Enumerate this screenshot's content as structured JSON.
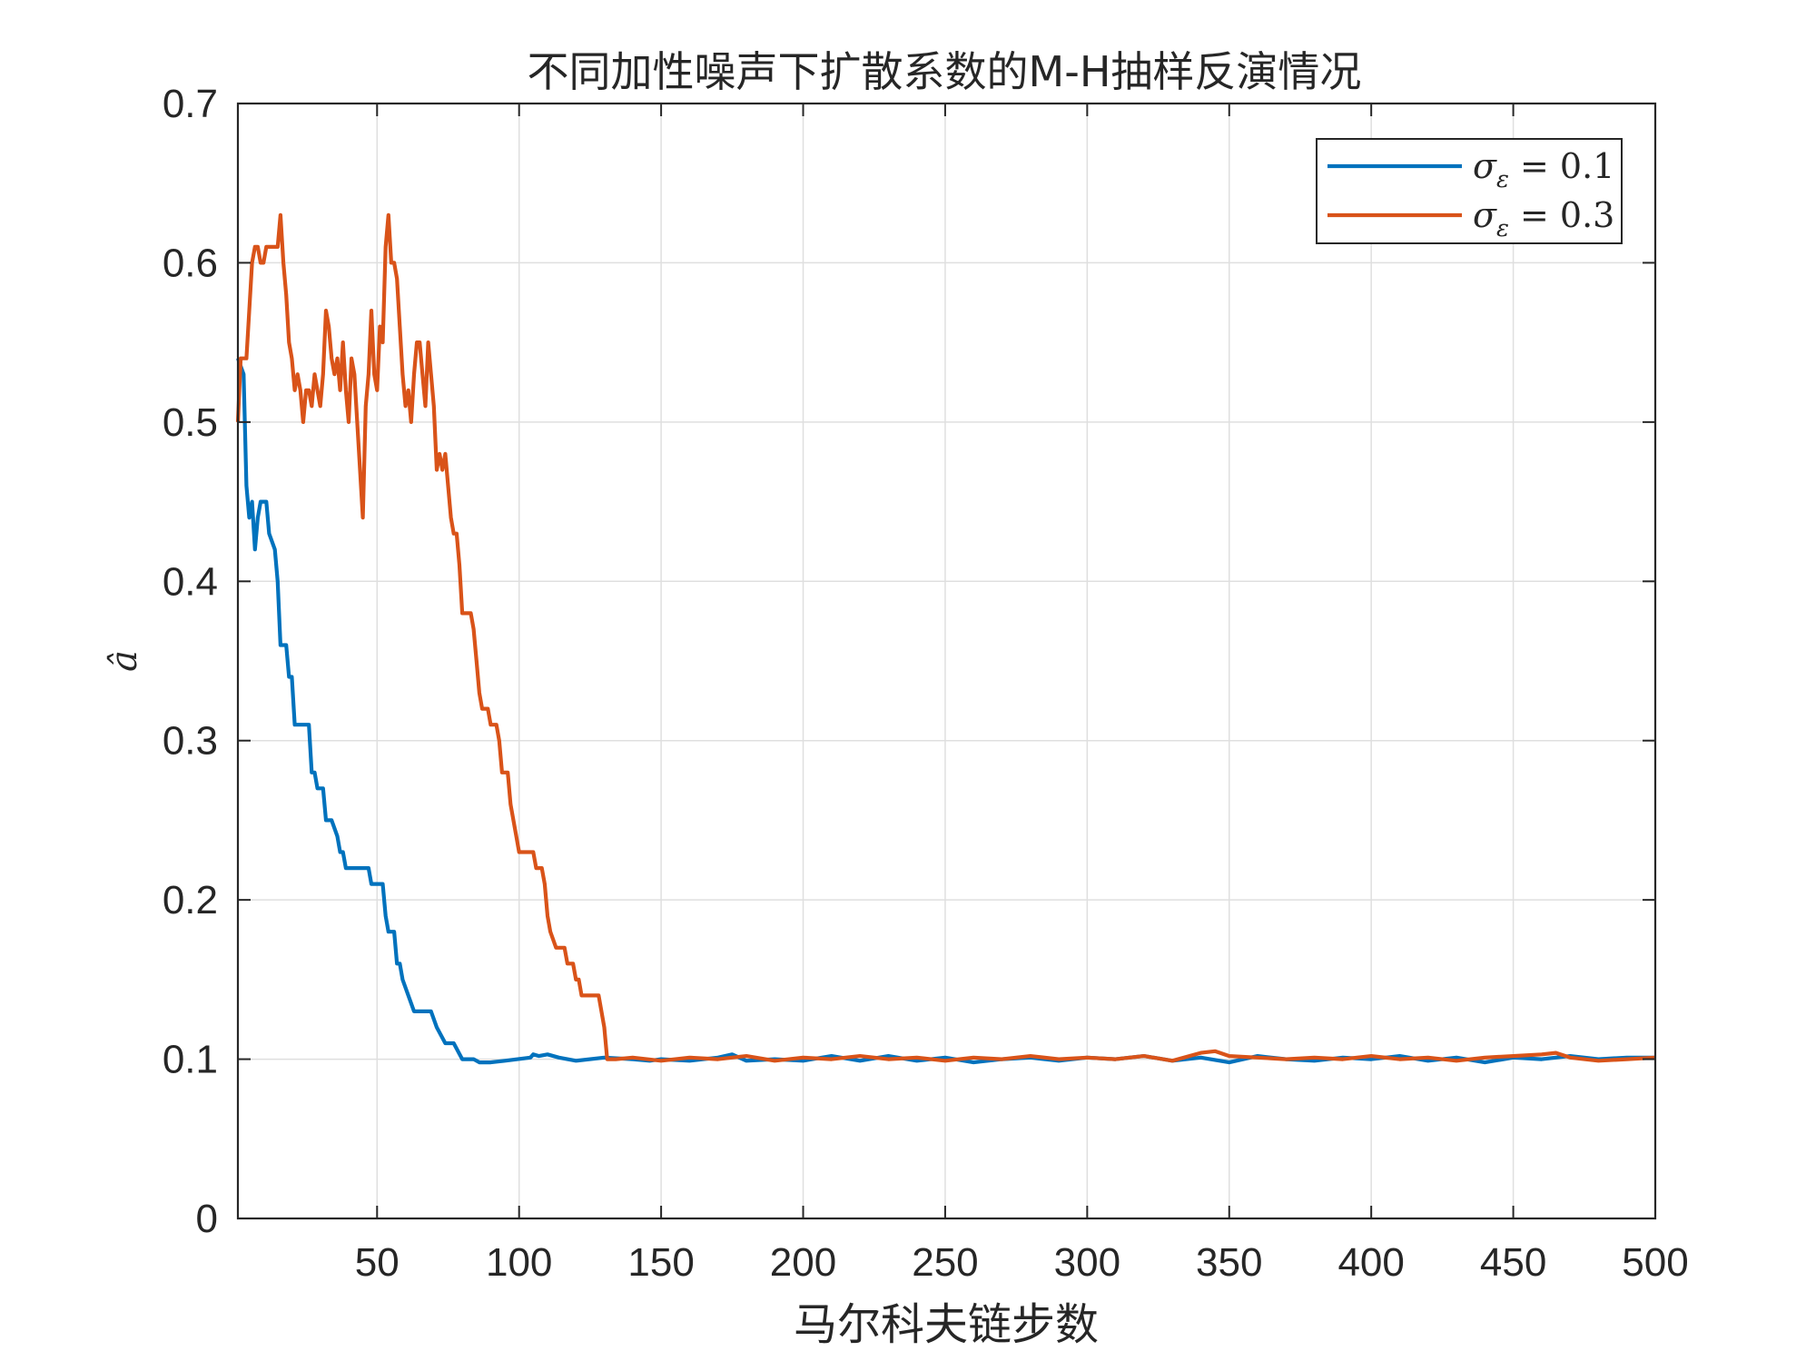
{
  "chart_data": {
    "type": "line",
    "title": "不同加性噪声下扩散系数的M-H抽样反演情况",
    "xlabel": "马尔科夫链步数",
    "ylabel": "â",
    "xlim": [
      1,
      500
    ],
    "ylim": [
      0,
      0.7
    ],
    "xticks": [
      50,
      100,
      150,
      200,
      250,
      300,
      350,
      400,
      450,
      500
    ],
    "xtick_labels": [
      "50",
      "100",
      "150",
      "200",
      "250",
      "300",
      "350",
      "400",
      "450",
      "500"
    ],
    "yticks": [
      0,
      0.1,
      0.2,
      0.3,
      0.4,
      0.5,
      0.6,
      0.7
    ],
    "ytick_labels": [
      "0",
      "0.1",
      "0.2",
      "0.3",
      "0.4",
      "0.5",
      "0.6",
      "0.7"
    ],
    "grid": true,
    "legend_position": "top-right",
    "series": [
      {
        "name": "σε = 0.1",
        "color": "#0072BD",
        "points": [
          [
            1,
            0.54
          ],
          [
            3,
            0.53
          ],
          [
            4,
            0.46
          ],
          [
            5,
            0.44
          ],
          [
            6,
            0.45
          ],
          [
            7,
            0.42
          ],
          [
            8,
            0.44
          ],
          [
            9,
            0.45
          ],
          [
            11,
            0.45
          ],
          [
            12,
            0.43
          ],
          [
            14,
            0.42
          ],
          [
            15,
            0.4
          ],
          [
            16,
            0.36
          ],
          [
            18,
            0.36
          ],
          [
            19,
            0.34
          ],
          [
            20,
            0.34
          ],
          [
            21,
            0.31
          ],
          [
            25,
            0.31
          ],
          [
            26,
            0.31
          ],
          [
            27,
            0.28
          ],
          [
            28,
            0.28
          ],
          [
            29,
            0.27
          ],
          [
            31,
            0.27
          ],
          [
            32,
            0.25
          ],
          [
            34,
            0.25
          ],
          [
            36,
            0.24
          ],
          [
            37,
            0.23
          ],
          [
            38,
            0.23
          ],
          [
            39,
            0.22
          ],
          [
            47,
            0.22
          ],
          [
            48,
            0.21
          ],
          [
            52,
            0.21
          ],
          [
            53,
            0.19
          ],
          [
            54,
            0.18
          ],
          [
            56,
            0.18
          ],
          [
            57,
            0.16
          ],
          [
            58,
            0.16
          ],
          [
            59,
            0.15
          ],
          [
            61,
            0.14
          ],
          [
            63,
            0.13
          ],
          [
            69,
            0.13
          ],
          [
            71,
            0.12
          ],
          [
            74,
            0.11
          ],
          [
            77,
            0.11
          ],
          [
            80,
            0.1
          ],
          [
            84,
            0.1
          ],
          [
            86,
            0.098
          ],
          [
            90,
            0.098
          ],
          [
            95,
            0.099
          ],
          [
            104,
            0.101
          ],
          [
            105,
            0.103
          ],
          [
            107,
            0.102
          ],
          [
            110,
            0.103
          ],
          [
            114,
            0.101
          ],
          [
            120,
            0.099
          ],
          [
            130,
            0.101
          ],
          [
            140,
            0.1
          ],
          [
            146,
            0.099
          ],
          [
            150,
            0.1
          ],
          [
            160,
            0.099
          ],
          [
            170,
            0.101
          ],
          [
            175,
            0.103
          ],
          [
            180,
            0.099
          ],
          [
            190,
            0.1
          ],
          [
            200,
            0.099
          ],
          [
            210,
            0.102
          ],
          [
            220,
            0.099
          ],
          [
            230,
            0.102
          ],
          [
            240,
            0.099
          ],
          [
            250,
            0.101
          ],
          [
            260,
            0.098
          ],
          [
            270,
            0.1
          ],
          [
            280,
            0.101
          ],
          [
            290,
            0.099
          ],
          [
            300,
            0.101
          ],
          [
            310,
            0.1
          ],
          [
            320,
            0.102
          ],
          [
            330,
            0.099
          ],
          [
            340,
            0.101
          ],
          [
            350,
            0.098
          ],
          [
            360,
            0.102
          ],
          [
            370,
            0.1
          ],
          [
            380,
            0.099
          ],
          [
            390,
            0.101
          ],
          [
            400,
            0.1
          ],
          [
            410,
            0.102
          ],
          [
            420,
            0.099
          ],
          [
            430,
            0.101
          ],
          [
            440,
            0.098
          ],
          [
            450,
            0.101
          ],
          [
            460,
            0.1
          ],
          [
            470,
            0.102
          ],
          [
            480,
            0.1
          ],
          [
            490,
            0.101
          ],
          [
            500,
            0.101
          ]
        ]
      },
      {
        "name": "σε = 0.3",
        "color": "#D95319",
        "points": [
          [
            1,
            0.5
          ],
          [
            2,
            0.54
          ],
          [
            4,
            0.54
          ],
          [
            5,
            0.57
          ],
          [
            6,
            0.6
          ],
          [
            7,
            0.61
          ],
          [
            8,
            0.61
          ],
          [
            9,
            0.6
          ],
          [
            10,
            0.6
          ],
          [
            11,
            0.61
          ],
          [
            15,
            0.61
          ],
          [
            16,
            0.63
          ],
          [
            17,
            0.6
          ],
          [
            18,
            0.58
          ],
          [
            19,
            0.55
          ],
          [
            20,
            0.54
          ],
          [
            21,
            0.52
          ],
          [
            22,
            0.53
          ],
          [
            23,
            0.52
          ],
          [
            24,
            0.5
          ],
          [
            25,
            0.52
          ],
          [
            26,
            0.52
          ],
          [
            27,
            0.51
          ],
          [
            28,
            0.53
          ],
          [
            29,
            0.52
          ],
          [
            30,
            0.51
          ],
          [
            31,
            0.53
          ],
          [
            32,
            0.57
          ],
          [
            33,
            0.56
          ],
          [
            34,
            0.54
          ],
          [
            35,
            0.53
          ],
          [
            36,
            0.54
          ],
          [
            37,
            0.52
          ],
          [
            38,
            0.55
          ],
          [
            39,
            0.52
          ],
          [
            40,
            0.5
          ],
          [
            41,
            0.54
          ],
          [
            42,
            0.53
          ],
          [
            43,
            0.5
          ],
          [
            44,
            0.47
          ],
          [
            45,
            0.44
          ],
          [
            46,
            0.51
          ],
          [
            47,
            0.53
          ],
          [
            48,
            0.57
          ],
          [
            49,
            0.53
          ],
          [
            50,
            0.52
          ],
          [
            51,
            0.56
          ],
          [
            52,
            0.55
          ],
          [
            53,
            0.61
          ],
          [
            54,
            0.63
          ],
          [
            55,
            0.6
          ],
          [
            56,
            0.6
          ],
          [
            57,
            0.59
          ],
          [
            58,
            0.56
          ],
          [
            59,
            0.53
          ],
          [
            60,
            0.51
          ],
          [
            61,
            0.52
          ],
          [
            62,
            0.5
          ],
          [
            63,
            0.53
          ],
          [
            64,
            0.55
          ],
          [
            65,
            0.55
          ],
          [
            66,
            0.53
          ],
          [
            67,
            0.51
          ],
          [
            68,
            0.55
          ],
          [
            69,
            0.53
          ],
          [
            70,
            0.51
          ],
          [
            71,
            0.47
          ],
          [
            72,
            0.48
          ],
          [
            73,
            0.47
          ],
          [
            74,
            0.48
          ],
          [
            75,
            0.46
          ],
          [
            76,
            0.44
          ],
          [
            77,
            0.43
          ],
          [
            78,
            0.43
          ],
          [
            79,
            0.41
          ],
          [
            80,
            0.38
          ],
          [
            83,
            0.38
          ],
          [
            84,
            0.37
          ],
          [
            85,
            0.35
          ],
          [
            86,
            0.33
          ],
          [
            87,
            0.32
          ],
          [
            89,
            0.32
          ],
          [
            90,
            0.31
          ],
          [
            92,
            0.31
          ],
          [
            93,
            0.3
          ],
          [
            94,
            0.28
          ],
          [
            96,
            0.28
          ],
          [
            97,
            0.26
          ],
          [
            99,
            0.24
          ],
          [
            100,
            0.23
          ],
          [
            105,
            0.23
          ],
          [
            106,
            0.22
          ],
          [
            108,
            0.22
          ],
          [
            109,
            0.21
          ],
          [
            110,
            0.19
          ],
          [
            111,
            0.18
          ],
          [
            113,
            0.17
          ],
          [
            116,
            0.17
          ],
          [
            117,
            0.16
          ],
          [
            119,
            0.16
          ],
          [
            120,
            0.15
          ],
          [
            121,
            0.15
          ],
          [
            122,
            0.14
          ],
          [
            128,
            0.14
          ],
          [
            130,
            0.12
          ],
          [
            131,
            0.1
          ],
          [
            134,
            0.1
          ],
          [
            140,
            0.101
          ],
          [
            150,
            0.099
          ],
          [
            160,
            0.101
          ],
          [
            170,
            0.1
          ],
          [
            180,
            0.102
          ],
          [
            190,
            0.099
          ],
          [
            200,
            0.101
          ],
          [
            210,
            0.1
          ],
          [
            220,
            0.102
          ],
          [
            230,
            0.1
          ],
          [
            240,
            0.101
          ],
          [
            250,
            0.099
          ],
          [
            260,
            0.101
          ],
          [
            270,
            0.1
          ],
          [
            280,
            0.102
          ],
          [
            290,
            0.1
          ],
          [
            300,
            0.101
          ],
          [
            310,
            0.1
          ],
          [
            320,
            0.102
          ],
          [
            330,
            0.099
          ],
          [
            340,
            0.104
          ],
          [
            345,
            0.105
          ],
          [
            350,
            0.102
          ],
          [
            360,
            0.101
          ],
          [
            370,
            0.1
          ],
          [
            380,
            0.101
          ],
          [
            390,
            0.1
          ],
          [
            400,
            0.102
          ],
          [
            410,
            0.1
          ],
          [
            420,
            0.101
          ],
          [
            430,
            0.099
          ],
          [
            440,
            0.101
          ],
          [
            450,
            0.102
          ],
          [
            460,
            0.103
          ],
          [
            465,
            0.104
          ],
          [
            470,
            0.101
          ],
          [
            480,
            0.099
          ],
          [
            490,
            0.1
          ],
          [
            500,
            0.101
          ]
        ]
      }
    ],
    "legend": [
      {
        "label_main": "σ",
        "label_sub": "ε",
        "label_rest": " = 0.1"
      },
      {
        "label_main": "σ",
        "label_sub": "ε",
        "label_rest": " = 0.3"
      }
    ]
  }
}
